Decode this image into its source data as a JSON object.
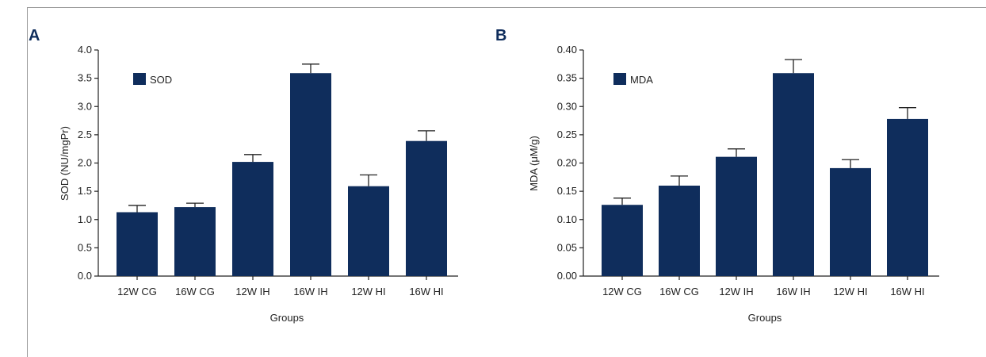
{
  "colors": {
    "bar": "#0f2d5c",
    "axis": "#222222"
  },
  "chart_data": [
    {
      "type": "bar",
      "panel_label": "A",
      "categories": [
        "12W CG",
        "16W CG",
        "12W IH",
        "16W IH",
        "12W HI",
        "16W HI"
      ],
      "series": [
        {
          "name": "SOD",
          "values": [
            1.13,
            1.22,
            2.02,
            3.59,
            1.59,
            2.39
          ],
          "errors": [
            0.12,
            0.07,
            0.13,
            0.16,
            0.2,
            0.18
          ]
        }
      ],
      "xlabel": "Groups",
      "ylabel": "SOD (NU/mgPr)",
      "ylim": [
        0,
        4
      ],
      "yticks": [
        "0.0",
        "0.5",
        "1.0",
        "1.5",
        "2.0",
        "2.5",
        "3.0",
        "3.5",
        "4.0"
      ],
      "legend": "top-left",
      "grid": false
    },
    {
      "type": "bar",
      "panel_label": "B",
      "categories": [
        "12W CG",
        "16W CG",
        "12W IH",
        "16W IH",
        "12W HI",
        "16W HI"
      ],
      "series": [
        {
          "name": "MDA",
          "values": [
            0.126,
            0.16,
            0.211,
            0.359,
            0.191,
            0.278
          ],
          "errors": [
            0.012,
            0.017,
            0.014,
            0.024,
            0.015,
            0.02
          ]
        }
      ],
      "xlabel": "Groups",
      "ylabel": "MDA (μM/g)",
      "ylim": [
        0,
        0.4
      ],
      "yticks": [
        "0.00",
        "0.05",
        "0.10",
        "0.15",
        "0.20",
        "0.25",
        "0.30",
        "0.35",
        "0.40"
      ],
      "legend": "top-left",
      "grid": false
    }
  ]
}
